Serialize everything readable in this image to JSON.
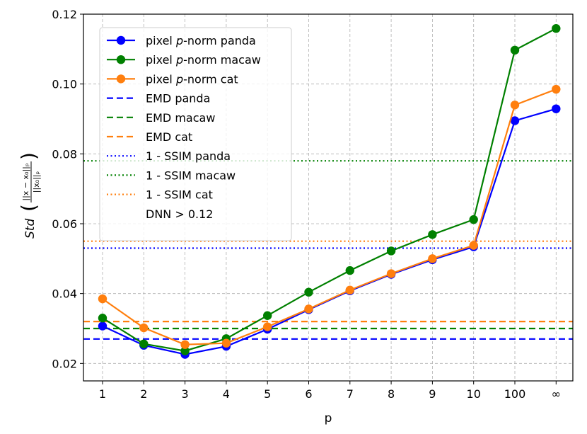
{
  "chart_data": {
    "type": "line",
    "categories": [
      "1",
      "2",
      "3",
      "4",
      "5",
      "6",
      "7",
      "8",
      "9",
      "10",
      "100",
      "∞"
    ],
    "xlabel": "p",
    "ylabel_text": "Std",
    "ylabel_numerator": "||x − x₀||ₚ",
    "ylabel_denominator": "||x₀||ₚ",
    "ylim": [
      0.015,
      0.12
    ],
    "yticks": [
      "0.02",
      "0.04",
      "0.06",
      "0.08",
      "0.10",
      "0.12"
    ],
    "ytick_values": [
      0.02,
      0.04,
      0.06,
      0.08,
      0.1,
      0.12
    ],
    "grid": true,
    "legend_position": "top-left",
    "series": [
      {
        "name": "pixel p-norm panda",
        "name_prefix": "pixel ",
        "name_italic": "p",
        "name_suffix": "-norm panda",
        "color": "#0000ff",
        "values": [
          0.0307,
          0.0252,
          0.0226,
          0.0249,
          0.0298,
          0.0354,
          0.0408,
          0.0455,
          0.0497,
          0.0534,
          0.0895,
          0.0929
        ]
      },
      {
        "name": "pixel p-norm macaw",
        "name_prefix": "pixel ",
        "name_italic": "p",
        "name_suffix": "-norm macaw",
        "color": "#008000",
        "values": [
          0.033,
          0.0256,
          0.0236,
          0.0271,
          0.0337,
          0.0404,
          0.0466,
          0.0522,
          0.0569,
          0.0612,
          0.1097,
          0.1159
        ]
      },
      {
        "name": "pixel p-norm cat",
        "name_prefix": "pixel ",
        "name_italic": "p",
        "name_suffix": "-norm cat",
        "color": "#ff7f0e",
        "values": [
          0.0385,
          0.0302,
          0.0254,
          0.0258,
          0.0305,
          0.0356,
          0.041,
          0.0457,
          0.05,
          0.0538,
          0.094,
          0.0985
        ]
      }
    ],
    "reference_lines": [
      {
        "name": "EMD panda",
        "value": 0.027,
        "color": "#0000ff",
        "style": "dashed"
      },
      {
        "name": "EMD macaw",
        "value": 0.03,
        "color": "#008000",
        "style": "dashed"
      },
      {
        "name": "EMD cat",
        "value": 0.032,
        "color": "#ff7f0e",
        "style": "dashed"
      },
      {
        "name": "1 - SSIM panda",
        "value": 0.053,
        "color": "#0000ff",
        "style": "dotted"
      },
      {
        "name": "1 - SSIM macaw",
        "value": 0.078,
        "color": "#008000",
        "style": "dotted"
      },
      {
        "name": "1 - SSIM cat",
        "value": 0.055,
        "color": "#ff7f0e",
        "style": "dotted"
      }
    ],
    "extra_legend_text": "DNN > 0.12"
  }
}
